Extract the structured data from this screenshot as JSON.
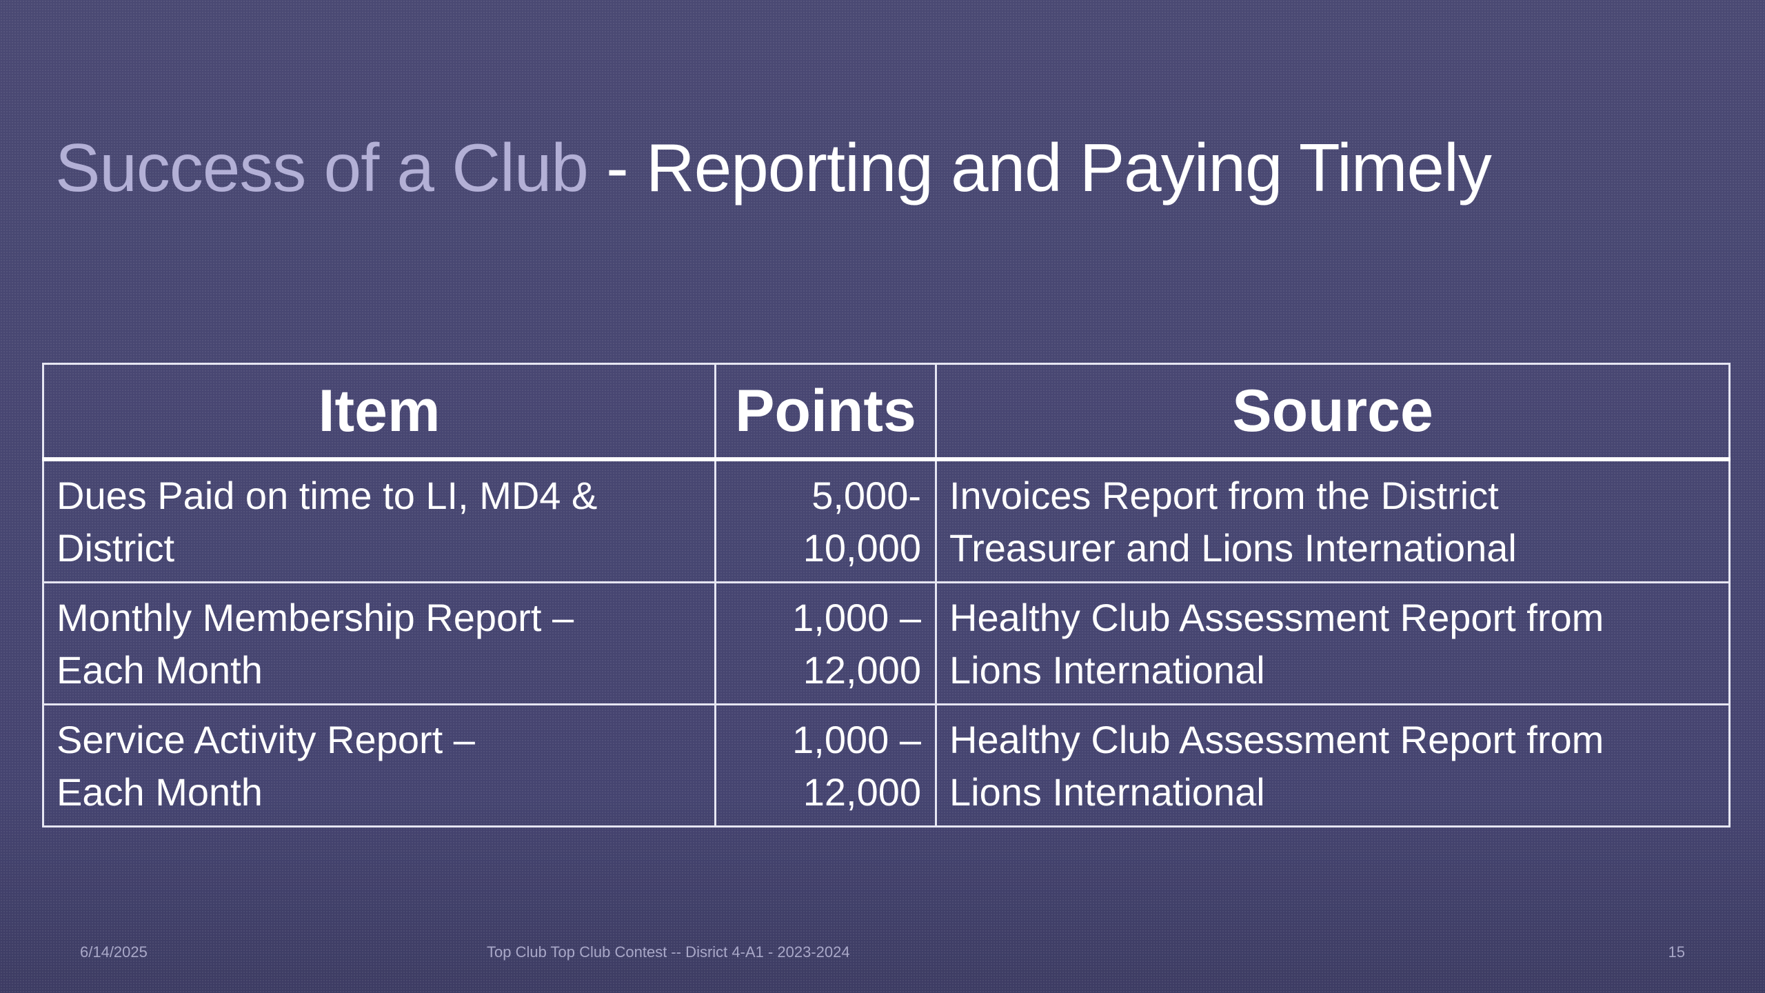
{
  "title": {
    "accent": "Success of a Club",
    "main": " - Reporting and Paying Timely"
  },
  "table": {
    "headers": [
      "Item",
      "Points",
      "Source"
    ],
    "rows": [
      {
        "item": [
          "Dues Paid on time to LI, MD4 &",
          "District"
        ],
        "points": [
          "5,000-",
          "10,000"
        ],
        "source": [
          "Invoices Report from the District",
          "Treasurer and Lions International"
        ]
      },
      {
        "item": [
          "Monthly Membership Report –",
          "Each Month"
        ],
        "points": [
          "1,000 –",
          "12,000"
        ],
        "source": [
          "Healthy Club Assessment Report from",
          "Lions International"
        ]
      },
      {
        "item": [
          "Service Activity Report –",
          "Each Month"
        ],
        "points": [
          "1,000 –",
          "12,000"
        ],
        "source": [
          "Healthy Club Assessment Report from",
          "Lions International"
        ]
      }
    ]
  },
  "footer": {
    "date": "6/14/2025",
    "center": "Top Club Top Club Contest -- Disrict 4-A1 - 2023-2024",
    "page": "15"
  },
  "colors": {
    "background": "#47466e",
    "title_accent": "#b3b0d6",
    "text": "#ffffff"
  }
}
